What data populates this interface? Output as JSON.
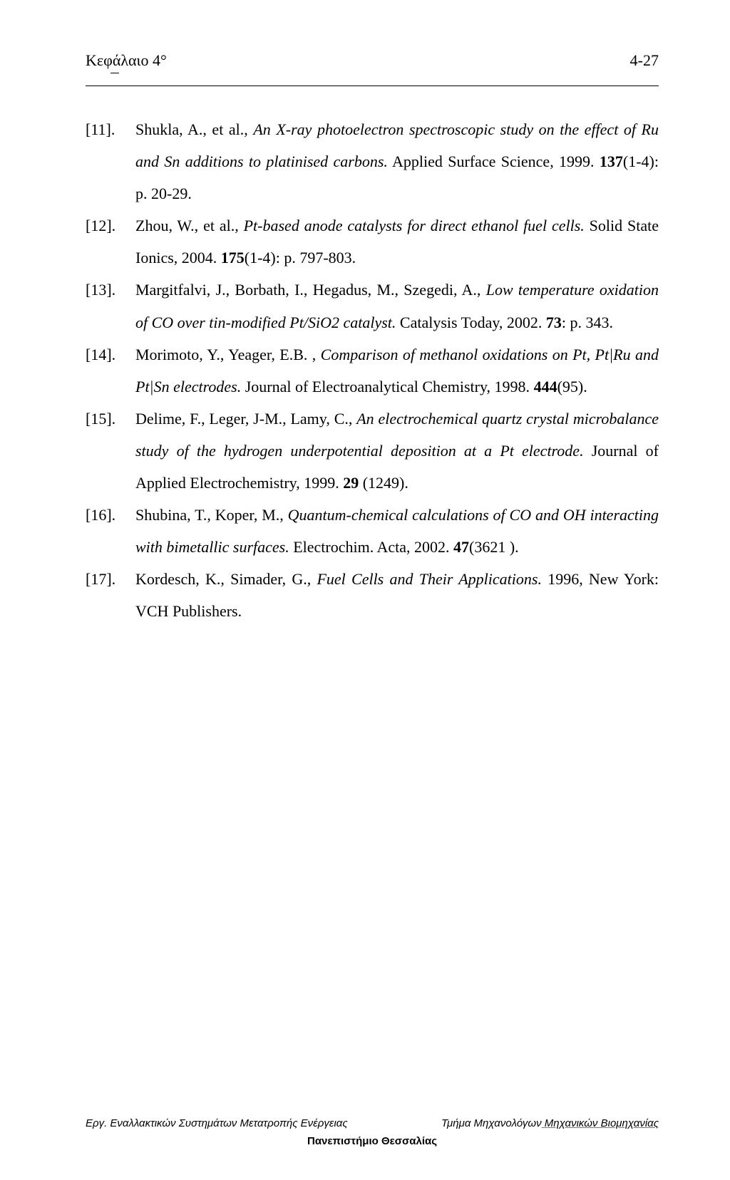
{
  "header": {
    "chapter": "Κεφάλαιο 4°",
    "page_label": "4-27"
  },
  "references": [
    {
      "num": "[11].",
      "html": "Shukla, A., et al., <em>An X-ray photoelectron spectroscopic study on the effect of Ru and Sn additions to platinised carbons.</em> Applied Surface Science, 1999. <b>137</b>(1-4): p. 20-29."
    },
    {
      "num": "[12].",
      "html": "Zhou, W., et al., <em>Pt-based anode catalysts for direct ethanol fuel cells.</em> Solid State Ionics, 2004. <b>175</b>(1-4): p. 797-803."
    },
    {
      "num": "[13].",
      "html": "Margitfalvi, J., Borbath, I., Hegadus, M., Szegedi, A., <em>Low temperature oxidation of CO over tin-modified Pt/SiO2 catalyst.</em> Catalysis Today, 2002. <b>73</b>: p. 343."
    },
    {
      "num": "[14].",
      "html": "Morimoto, Y., Yeager, E.B. , <em>Comparison of methanol oxidations on Pt, Pt|Ru and Pt|Sn electrodes.</em> Journal of Electroanalytical Chemistry, 1998. <b>444</b>(95)."
    },
    {
      "num": "[15].",
      "html": "Delime, F., Leger, J-M., Lamy, C., <em>An electrochemical quartz crystal microbalance study of the hydrogen underpotential deposition at a Pt electrode.</em> Journal of Applied Electrochemistry, 1999. <b>29</b> (1249)."
    },
    {
      "num": "[16].",
      "html": "Shubina, T., Koper, M., <em>Quantum-chemical calculations of CO and OH interacting with bimetallic surfaces.</em> Electrochim. Acta, 2002. <b>47</b>(3621 )."
    },
    {
      "num": "[17].",
      "html": "Kordesch, K., Simader, G., <em>Fuel Cells and Their Applications.</em> 1996, New York: VCH Publishers."
    }
  ],
  "footer": {
    "left": "Εργ. Εναλλακτικών Συστημάτων Μετατροπής Ενέργειας",
    "right_a": "Τμήμα Μηχανολόγων",
    "right_b": " Μηχανικών Βιομηχανίας",
    "center": "Πανεπιστήμιο Θεσσαλίας"
  }
}
